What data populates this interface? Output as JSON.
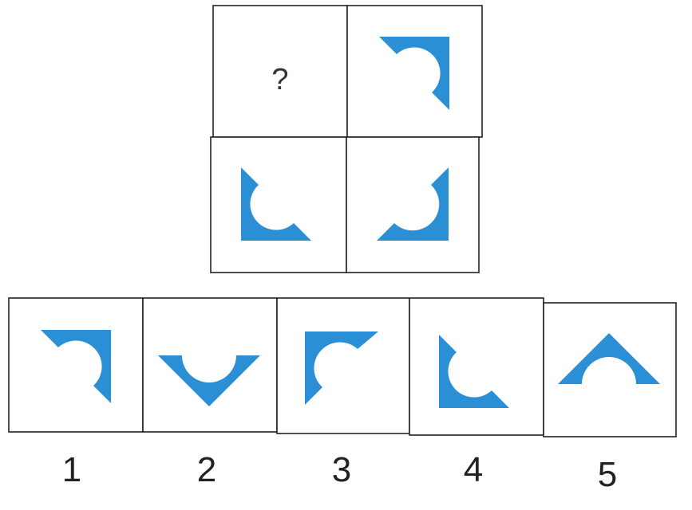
{
  "puzzle": {
    "question_mark": "?",
    "shape_color": "#2b8fd6",
    "grid_cells": [
      {
        "content": "question-mark"
      },
      {
        "content": "shape",
        "icon": "corner-arc-top-right-icon"
      },
      {
        "content": "shape",
        "icon": "corner-arc-bottom-left-icon"
      },
      {
        "content": "shape",
        "icon": "corner-arc-bottom-right-icon"
      }
    ]
  },
  "options": [
    {
      "label": "1",
      "icon": "corner-arc-top-right-icon"
    },
    {
      "label": "2",
      "icon": "v-arc-down-icon"
    },
    {
      "label": "3",
      "icon": "corner-arc-top-left-icon"
    },
    {
      "label": "4",
      "icon": "corner-arc-bottom-left-icon"
    },
    {
      "label": "5",
      "icon": "arch-up-icon"
    }
  ]
}
